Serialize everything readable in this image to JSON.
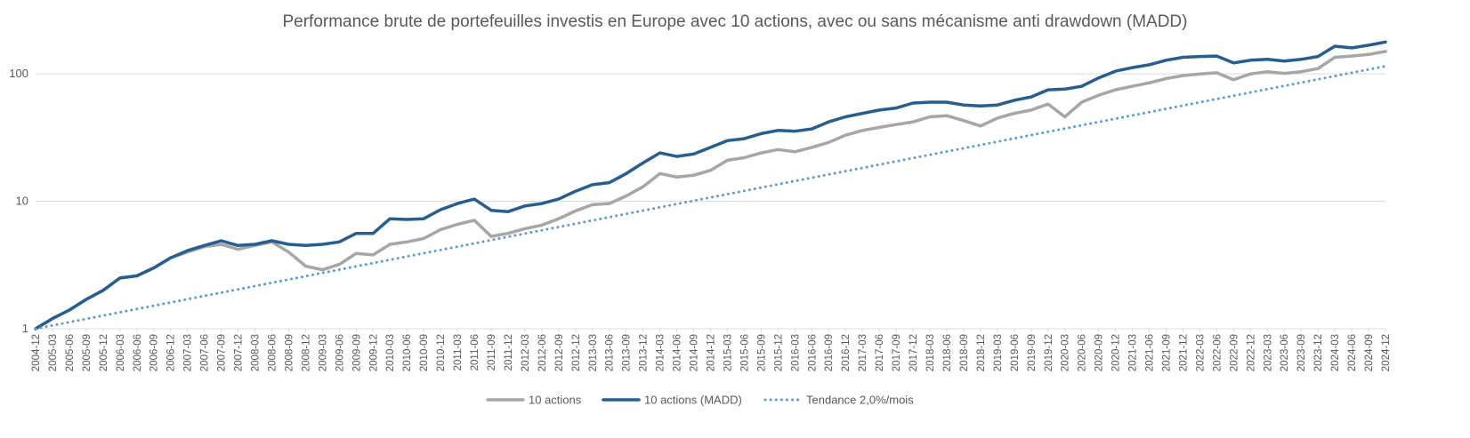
{
  "chart_data": {
    "type": "line",
    "title": "Performance brute de portefeuilles investis en Europe avec 10 actions, avec ou sans mécanisme anti drawdown (MADD)",
    "xlabel": "",
    "ylabel": "",
    "y_scale": "log",
    "ylim": [
      1,
      200
    ],
    "y_ticks": [
      1,
      10,
      100
    ],
    "y_tick_labels": [
      "1",
      "10",
      "100"
    ],
    "grid": "horizontal",
    "legend_position": "bottom",
    "x_tick_labels": [
      "2004-12",
      "2005-03",
      "2005-06",
      "2005-09",
      "2005-12",
      "2006-03",
      "2006-06",
      "2006-09",
      "2006-12",
      "2007-03",
      "2007-06",
      "2007-09",
      "2007-12",
      "2008-03",
      "2008-06",
      "2008-09",
      "2008-12",
      "2009-03",
      "2009-06",
      "2009-09",
      "2009-12",
      "2010-03",
      "2010-06",
      "2010-09",
      "2010-12",
      "2011-03",
      "2011-06",
      "2011-09",
      "2011-12",
      "2012-03",
      "2012-06",
      "2012-09",
      "2012-12",
      "2013-03",
      "2013-06",
      "2013-09",
      "2013-12",
      "2014-03",
      "2014-06",
      "2014-09",
      "2014-12",
      "2015-03",
      "2015-06",
      "2015-09",
      "2015-12",
      "2016-03",
      "2016-06",
      "2016-09",
      "2016-12",
      "2017-03",
      "2017-06",
      "2017-09",
      "2017-12",
      "2018-03",
      "2018-06",
      "2018-09",
      "2018-12",
      "2019-03",
      "2019-06",
      "2019-09",
      "2019-12",
      "2020-03",
      "2020-06",
      "2020-09",
      "2020-12",
      "2021-03",
      "2021-06",
      "2021-09",
      "2021-12",
      "2022-03",
      "2022-06",
      "2022-09",
      "2022-12",
      "2023-03",
      "2023-06",
      "2023-09",
      "2023-12",
      "2024-03",
      "2024-06",
      "2024-09",
      "2024-12"
    ],
    "series": [
      {
        "name": "10 actions",
        "color": "#a6a6a6",
        "style": "solid",
        "points": [
          [
            "2004-12",
            1.0
          ],
          [
            "2005-03",
            1.2
          ],
          [
            "2005-06",
            1.4
          ],
          [
            "2005-09",
            1.7
          ],
          [
            "2005-12",
            2.0
          ],
          [
            "2006-03",
            2.5
          ],
          [
            "2006-06",
            2.6
          ],
          [
            "2006-09",
            3.0
          ],
          [
            "2006-12",
            3.6
          ],
          [
            "2007-03",
            4.0
          ],
          [
            "2007-06",
            4.4
          ],
          [
            "2007-09",
            4.6
          ],
          [
            "2007-12",
            4.2
          ],
          [
            "2008-03",
            4.5
          ],
          [
            "2008-06",
            4.8
          ],
          [
            "2008-09",
            4.0
          ],
          [
            "2008-12",
            3.1
          ],
          [
            "2009-03",
            2.9
          ],
          [
            "2009-06",
            3.2
          ],
          [
            "2009-09",
            3.9
          ],
          [
            "2009-12",
            3.8
          ],
          [
            "2010-03",
            4.6
          ],
          [
            "2010-06",
            4.8
          ],
          [
            "2010-09",
            5.1
          ],
          [
            "2010-12",
            6.0
          ],
          [
            "2011-03",
            6.6
          ],
          [
            "2011-06",
            7.1
          ],
          [
            "2011-09",
            5.3
          ],
          [
            "2011-12",
            5.6
          ],
          [
            "2012-03",
            6.1
          ],
          [
            "2012-06",
            6.5
          ],
          [
            "2012-09",
            7.3
          ],
          [
            "2012-12",
            8.4
          ],
          [
            "2013-03",
            9.4
          ],
          [
            "2013-06",
            9.6
          ],
          [
            "2013-09",
            11.0
          ],
          [
            "2013-12",
            13.0
          ],
          [
            "2014-03",
            16.5
          ],
          [
            "2014-06",
            15.5
          ],
          [
            "2014-09",
            16.0
          ],
          [
            "2014-12",
            17.5
          ],
          [
            "2015-03",
            21.0
          ],
          [
            "2015-06",
            22.0
          ],
          [
            "2015-09",
            24.0
          ],
          [
            "2015-12",
            25.5
          ],
          [
            "2016-03",
            24.5
          ],
          [
            "2016-06",
            26.5
          ],
          [
            "2016-09",
            29.0
          ],
          [
            "2016-12",
            33.0
          ],
          [
            "2017-03",
            36.0
          ],
          [
            "2017-06",
            38.0
          ],
          [
            "2017-09",
            40.0
          ],
          [
            "2017-12",
            42.0
          ],
          [
            "2018-03",
            46.0
          ],
          [
            "2018-06",
            47.0
          ],
          [
            "2018-09",
            43.0
          ],
          [
            "2018-12",
            39.0
          ],
          [
            "2019-03",
            45.0
          ],
          [
            "2019-06",
            49.0
          ],
          [
            "2019-09",
            52.0
          ],
          [
            "2019-12",
            58.0
          ],
          [
            "2020-03",
            46.0
          ],
          [
            "2020-06",
            60.0
          ],
          [
            "2020-09",
            68.0
          ],
          [
            "2020-12",
            75.0
          ],
          [
            "2021-03",
            80.0
          ],
          [
            "2021-06",
            85.0
          ],
          [
            "2021-09",
            92.0
          ],
          [
            "2021-12",
            97.0
          ],
          [
            "2022-03",
            100.0
          ],
          [
            "2022-06",
            102.0
          ],
          [
            "2022-09",
            90.0
          ],
          [
            "2022-12",
            100.0
          ],
          [
            "2023-03",
            104.0
          ],
          [
            "2023-06",
            101.0
          ],
          [
            "2023-09",
            104.0
          ],
          [
            "2023-12",
            110.0
          ],
          [
            "2024-03",
            135.0
          ],
          [
            "2024-06",
            138.0
          ],
          [
            "2024-09",
            142.0
          ],
          [
            "2024-12",
            150.0
          ]
        ]
      },
      {
        "name": "10 actions (MADD)",
        "color": "#255e91",
        "style": "solid",
        "points": [
          [
            "2004-12",
            1.0
          ],
          [
            "2005-03",
            1.2
          ],
          [
            "2005-06",
            1.4
          ],
          [
            "2005-09",
            1.7
          ],
          [
            "2005-12",
            2.0
          ],
          [
            "2006-03",
            2.5
          ],
          [
            "2006-06",
            2.6
          ],
          [
            "2006-09",
            3.0
          ],
          [
            "2006-12",
            3.6
          ],
          [
            "2007-03",
            4.1
          ],
          [
            "2007-06",
            4.5
          ],
          [
            "2007-09",
            4.9
          ],
          [
            "2007-12",
            4.5
          ],
          [
            "2008-03",
            4.6
          ],
          [
            "2008-06",
            4.9
          ],
          [
            "2008-09",
            4.6
          ],
          [
            "2008-12",
            4.5
          ],
          [
            "2009-03",
            4.6
          ],
          [
            "2009-06",
            4.8
          ],
          [
            "2009-09",
            5.6
          ],
          [
            "2009-12",
            5.6
          ],
          [
            "2010-03",
            7.3
          ],
          [
            "2010-06",
            7.2
          ],
          [
            "2010-09",
            7.3
          ],
          [
            "2010-12",
            8.6
          ],
          [
            "2011-03",
            9.6
          ],
          [
            "2011-06",
            10.4
          ],
          [
            "2011-09",
            8.5
          ],
          [
            "2011-12",
            8.3
          ],
          [
            "2012-03",
            9.2
          ],
          [
            "2012-06",
            9.6
          ],
          [
            "2012-09",
            10.4
          ],
          [
            "2012-12",
            12.0
          ],
          [
            "2013-03",
            13.5
          ],
          [
            "2013-06",
            14.0
          ],
          [
            "2013-09",
            16.5
          ],
          [
            "2013-12",
            20.0
          ],
          [
            "2014-03",
            24.0
          ],
          [
            "2014-06",
            22.5
          ],
          [
            "2014-09",
            23.5
          ],
          [
            "2014-12",
            26.5
          ],
          [
            "2015-03",
            30.0
          ],
          [
            "2015-06",
            31.0
          ],
          [
            "2015-09",
            34.0
          ],
          [
            "2015-12",
            36.0
          ],
          [
            "2016-03",
            35.5
          ],
          [
            "2016-06",
            37.0
          ],
          [
            "2016-09",
            42.0
          ],
          [
            "2016-12",
            46.0
          ],
          [
            "2017-03",
            49.0
          ],
          [
            "2017-06",
            52.0
          ],
          [
            "2017-09",
            54.0
          ],
          [
            "2017-12",
            59.0
          ],
          [
            "2018-03",
            60.0
          ],
          [
            "2018-06",
            60.0
          ],
          [
            "2018-09",
            57.0
          ],
          [
            "2018-12",
            56.0
          ],
          [
            "2019-03",
            57.0
          ],
          [
            "2019-06",
            62.0
          ],
          [
            "2019-09",
            66.0
          ],
          [
            "2019-12",
            75.0
          ],
          [
            "2020-03",
            76.0
          ],
          [
            "2020-06",
            80.0
          ],
          [
            "2020-09",
            93.0
          ],
          [
            "2020-12",
            105.0
          ],
          [
            "2021-03",
            112.0
          ],
          [
            "2021-06",
            118.0
          ],
          [
            "2021-09",
            128.0
          ],
          [
            "2021-12",
            135.0
          ],
          [
            "2022-03",
            137.0
          ],
          [
            "2022-06",
            138.0
          ],
          [
            "2022-09",
            122.0
          ],
          [
            "2022-12",
            128.0
          ],
          [
            "2023-03",
            130.0
          ],
          [
            "2023-06",
            126.0
          ],
          [
            "2023-09",
            130.0
          ],
          [
            "2023-12",
            137.0
          ],
          [
            "2024-03",
            165.0
          ],
          [
            "2024-06",
            160.0
          ],
          [
            "2024-09",
            168.0
          ],
          [
            "2024-12",
            178.0
          ]
        ]
      },
      {
        "name": "Tendance 2,0%/mois",
        "color": "#5b9bd5",
        "style": "dotted",
        "points": [
          [
            "2004-12",
            1.0
          ],
          [
            "2024-12",
            115.0
          ]
        ]
      }
    ]
  }
}
